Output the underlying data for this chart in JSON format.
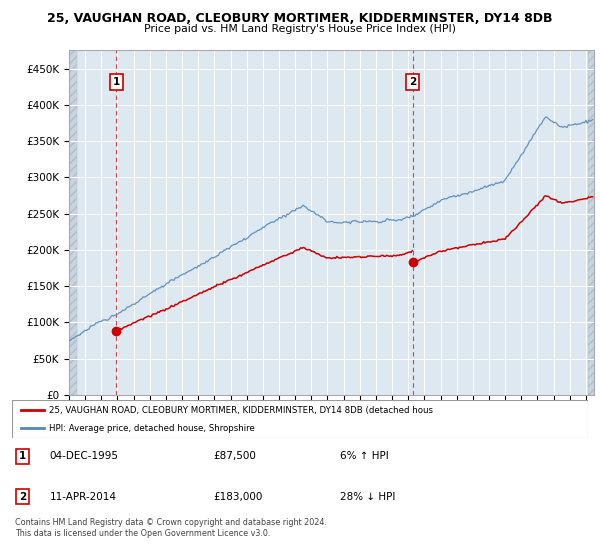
{
  "title_line1": "25, VAUGHAN ROAD, CLEOBURY MORTIMER, KIDDERMINSTER, DY14 8DB",
  "title_line2": "Price paid vs. HM Land Registry's House Price Index (HPI)",
  "ylim": [
    0,
    475000
  ],
  "yticks": [
    0,
    50000,
    100000,
    150000,
    200000,
    250000,
    300000,
    350000,
    400000,
    450000
  ],
  "ytick_labels": [
    "£0",
    "£50K",
    "£100K",
    "£150K",
    "£200K",
    "£250K",
    "£300K",
    "£350K",
    "£400K",
    "£450K"
  ],
  "sale1_date_num": 1995.92,
  "sale1_price": 87500,
  "sale2_date_num": 2014.27,
  "sale2_price": 183000,
  "hpi_color": "#5588bb",
  "price_color": "#cc0000",
  "legend_label1": "25, VAUGHAN ROAD, CLEOBURY MORTIMER, KIDDERMINSTER, DY14 8DB (detached hous",
  "legend_label2": "HPI: Average price, detached house, Shropshire",
  "footnote3": "Contains HM Land Registry data © Crown copyright and database right 2024.",
  "footnote4": "This data is licensed under the Open Government Licence v3.0.",
  "sale1_label": "04-DEC-1995",
  "sale1_price_str": "£87,500",
  "sale1_pct": "6% ↑ HPI",
  "sale2_label": "11-APR-2014",
  "sale2_price_str": "£183,000",
  "sale2_pct": "28% ↓ HPI"
}
